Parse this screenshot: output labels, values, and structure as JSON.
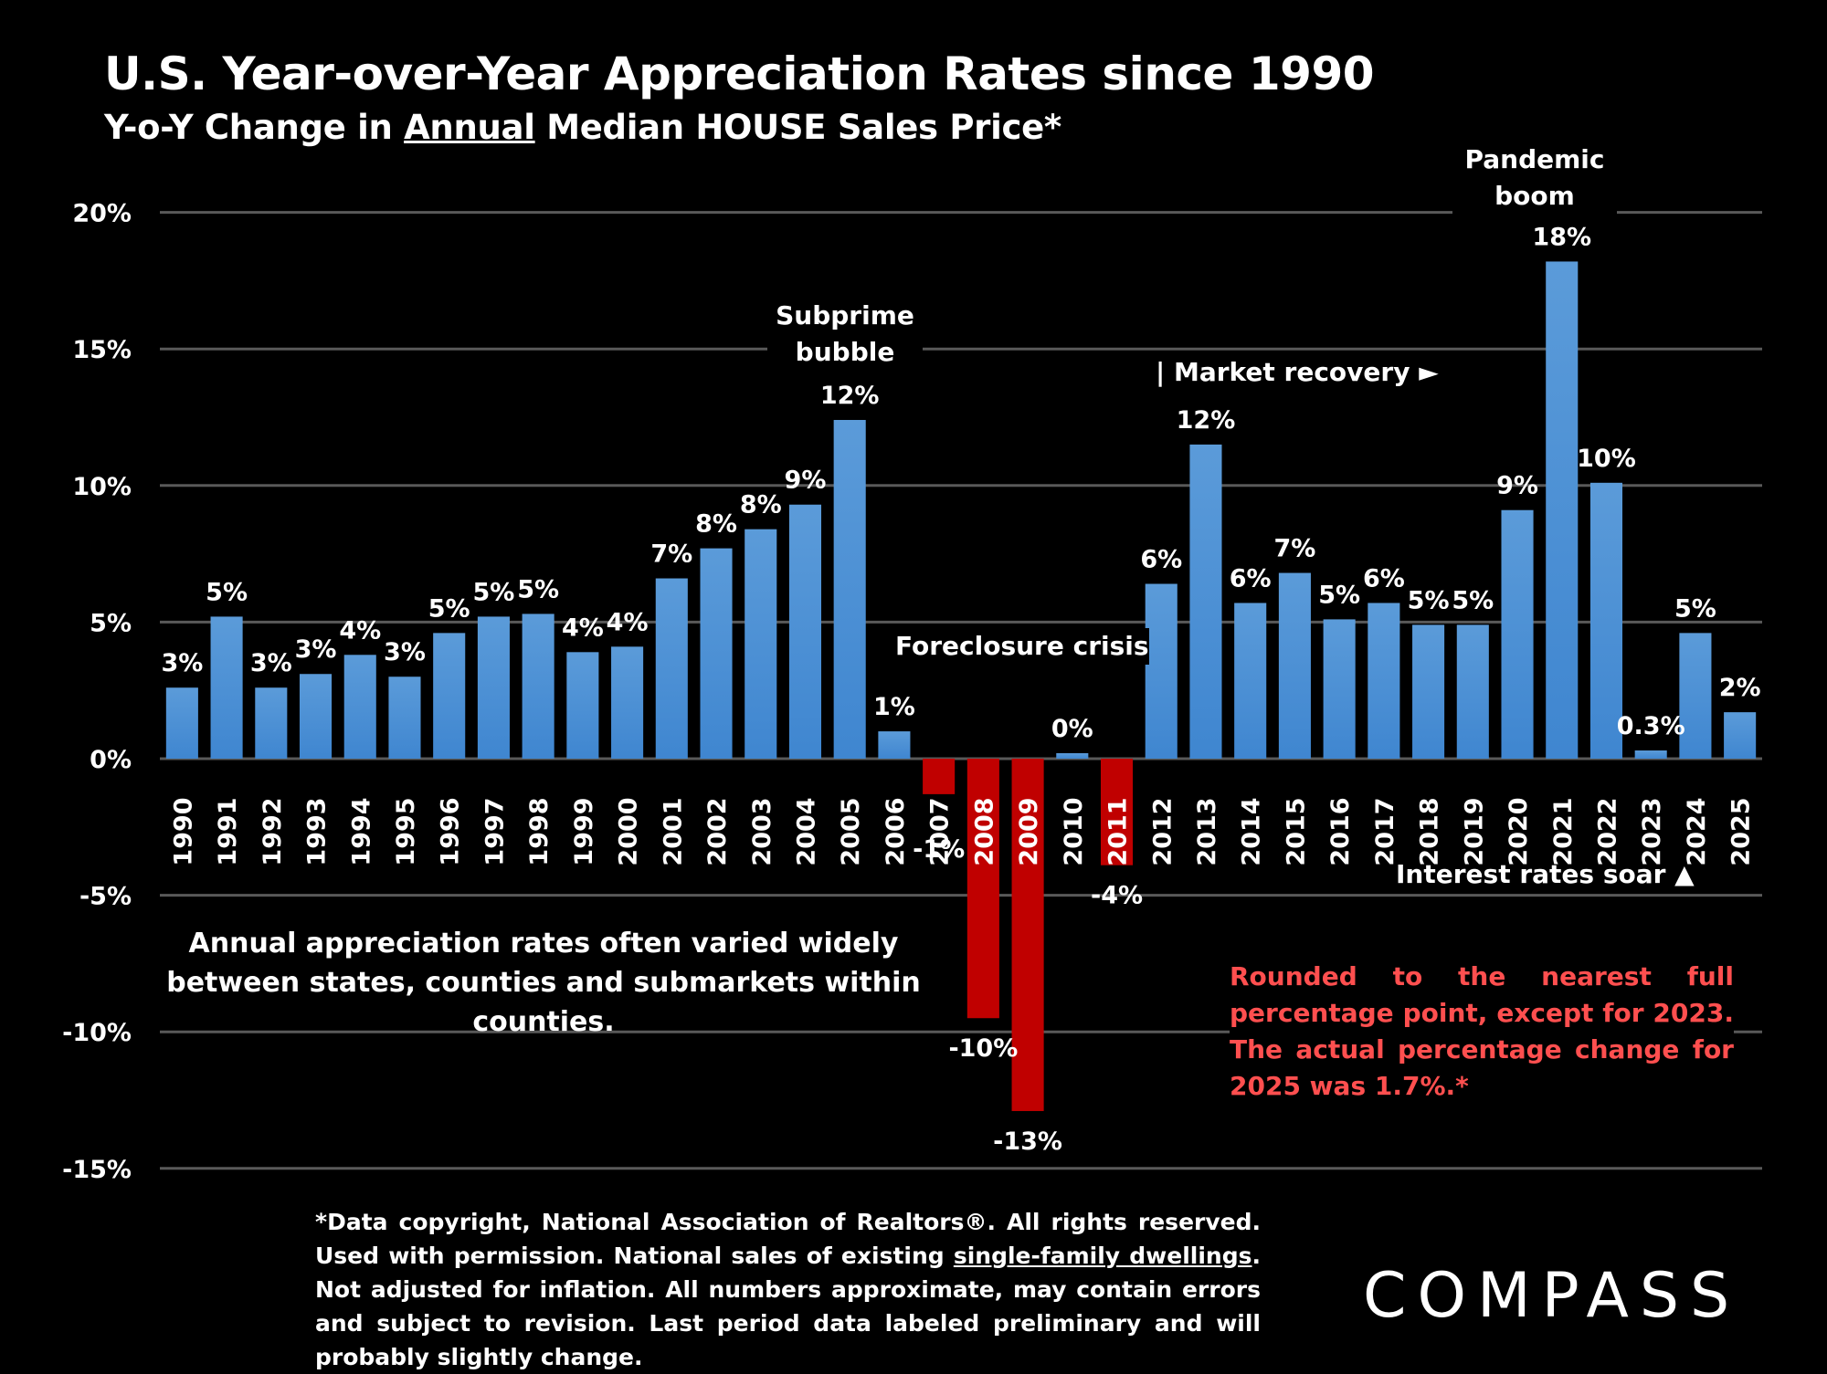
{
  "header": {
    "title": "U.S. Year-over-Year Appreciation Rates since 1990",
    "subtitle_pre": "Y-o-Y Change in ",
    "subtitle_underlined": "Annual",
    "subtitle_post": " Median HOUSE Sales Price*"
  },
  "annotations": {
    "subprime_line1": "Subprime",
    "subprime_line2": "bubble",
    "pandemic_line1": "Pandemic",
    "pandemic_line2": "boom",
    "market_recovery": "| Market recovery ►",
    "foreclosure": "Foreclosure crisis",
    "interest_rates": "Interest rates soar ▲",
    "variation_note": "Annual appreciation rates often varied widely between states, counties and submarkets within counties.",
    "rounding_note": "Rounded to the nearest full percentage point, except for 2023. The actual percentage change for 2025 was 1.7%.*"
  },
  "footnote": {
    "part1": "*Data copyright, National Association of Realtors®. All rights reserved. Used with permission. National sales of existing ",
    "underlined": "single-family dwellings",
    "part2": ". Not adjusted for inflation. All numbers approximate, may contain errors and subject to revision. Last period data labeled preliminary and will probably slightly change."
  },
  "brand": {
    "logo_text": "COMPASS"
  },
  "colors": {
    "positive_bar": "#4a8fd6",
    "negative_bar": "#c00000",
    "gridline": "#595959",
    "note_red": "#ff4f4f"
  },
  "chart_data": {
    "type": "bar",
    "title": "U.S. Year-over-Year Appreciation Rates since 1990",
    "subtitle": "Y-o-Y Change in Annual Median HOUSE Sales Price*",
    "xlabel": "",
    "ylabel": "",
    "ylim": [
      -15,
      20
    ],
    "yticks": [
      20,
      15,
      10,
      5,
      0,
      -5,
      -10,
      -15
    ],
    "ytick_labels": [
      "20%",
      "15%",
      "10%",
      "5%",
      "0%",
      "-5%",
      "-10%",
      "-15%"
    ],
    "grid": true,
    "categories": [
      "1990",
      "1991",
      "1992",
      "1993",
      "1994",
      "1995",
      "1996",
      "1997",
      "1998",
      "1999",
      "2000",
      "2001",
      "2002",
      "2003",
      "2004",
      "2005",
      "2006",
      "2007",
      "2008",
      "2009",
      "2010",
      "2011",
      "2012",
      "2013",
      "2014",
      "2015",
      "2016",
      "2017",
      "2018",
      "2019",
      "2020",
      "2021",
      "2022",
      "2023",
      "2024",
      "2025"
    ],
    "values": [
      2.6,
      5.2,
      2.6,
      3.1,
      3.8,
      3.0,
      4.6,
      5.2,
      5.3,
      3.9,
      4.1,
      6.6,
      7.7,
      8.4,
      9.3,
      12.4,
      1.0,
      -1.3,
      -9.5,
      -12.9,
      0.2,
      -3.9,
      6.4,
      11.5,
      5.7,
      6.8,
      5.1,
      5.7,
      4.9,
      4.9,
      9.1,
      18.2,
      10.1,
      0.3,
      4.6,
      1.7
    ],
    "labels": [
      "3%",
      "5%",
      "3%",
      "3%",
      "4%",
      "3%",
      "5%",
      "5%",
      "5%",
      "4%",
      "4%",
      "7%",
      "8%",
      "8%",
      "9%",
      "12%",
      "1%",
      "-1%",
      "-10%",
      "-13%",
      "0%",
      "-4%",
      "6%",
      "12%",
      "6%",
      "7%",
      "5%",
      "6%",
      "5%",
      "5%",
      "9%",
      "18%",
      "10%",
      "0.3%",
      "5%",
      "2%"
    ]
  }
}
